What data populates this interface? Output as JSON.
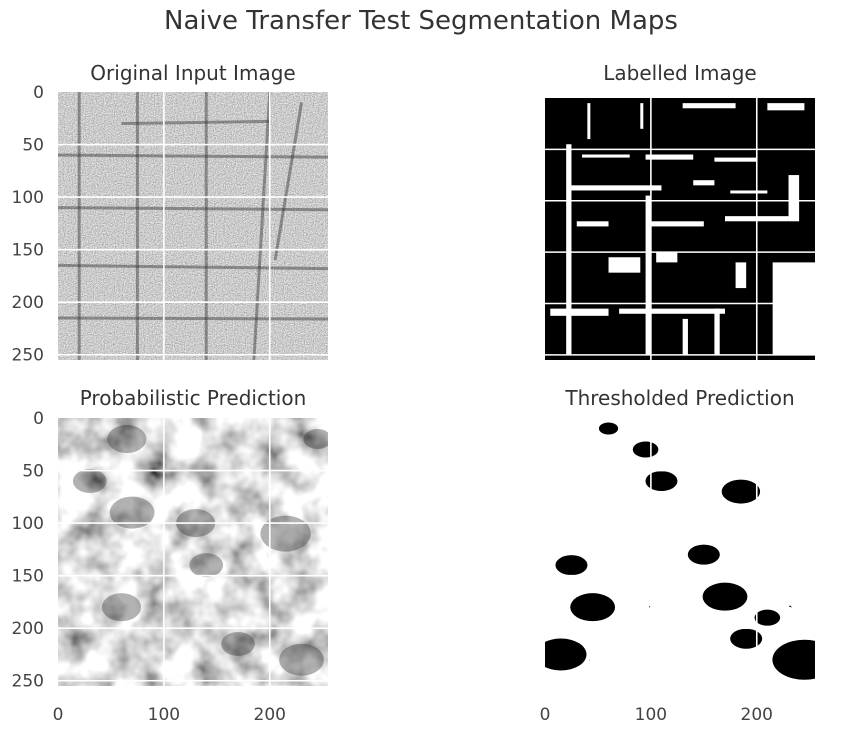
{
  "figure": {
    "title": "Naive Transfer Test Segmentation Maps"
  },
  "chart_data": [
    {
      "type": "heatmap",
      "title": "Original Input Image",
      "colormap": "gray",
      "xlim": [
        0,
        255
      ],
      "ylim": [
        255,
        0
      ],
      "yticks": [
        0,
        50,
        100,
        150,
        200,
        250
      ],
      "xticks": [],
      "grid": true,
      "style": "noisy-gray-texture"
    },
    {
      "type": "heatmap",
      "title": "Labelled Image",
      "colormap": "gray",
      "xlim": [
        0,
        255
      ],
      "ylim": [
        255,
        0
      ],
      "yticks": [],
      "xticks": [],
      "grid": true,
      "style": "binary-black-background"
    },
    {
      "type": "heatmap",
      "title": "Probabilistic Prediction",
      "colormap": "gray",
      "xlim": [
        0,
        255
      ],
      "ylim": [
        255,
        0
      ],
      "yticks": [
        0,
        50,
        100,
        150,
        200,
        250
      ],
      "xticks": [
        0,
        100,
        200
      ],
      "grid": true,
      "style": "soft-blurred-gray"
    },
    {
      "type": "heatmap",
      "title": "Thresholded Prediction",
      "colormap": "gray",
      "xlim": [
        0,
        255
      ],
      "ylim": [
        255,
        0
      ],
      "yticks": [],
      "xticks": [
        0,
        100,
        200
      ],
      "grid": true,
      "style": "binary-white-background"
    }
  ],
  "colors": {
    "grid": "#ffffff",
    "tick_text": "#444444"
  }
}
